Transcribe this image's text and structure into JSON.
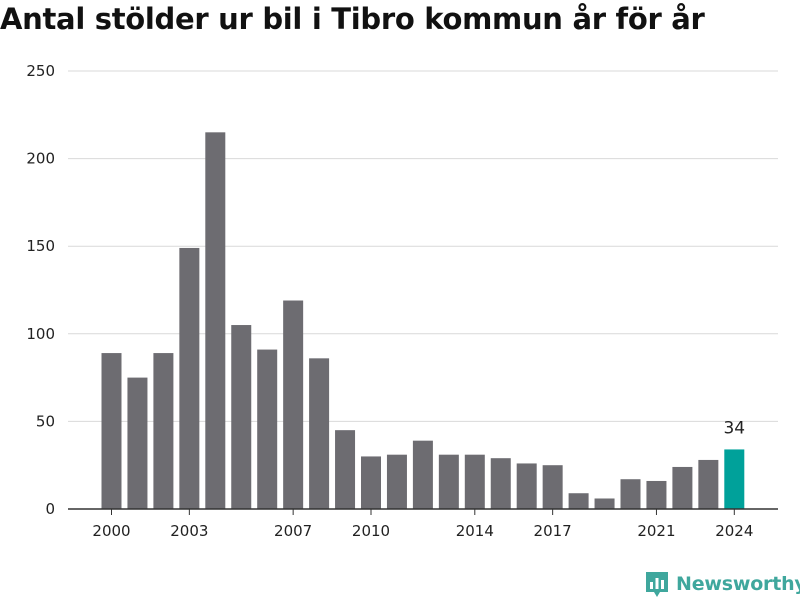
{
  "title": "Antal stölder ur bil i Tibro kommun år för år",
  "brand": {
    "name": "Newsworthy",
    "color": "#3fa79d",
    "icon": "newsworthy-logo-icon"
  },
  "colors": {
    "bar": "#6d6c71",
    "highlight": "#00a19a",
    "grid": "#d9d9d9",
    "axis": "#333333"
  },
  "chart_data": {
    "type": "bar",
    "title": "Antal stölder ur bil i Tibro kommun år för år",
    "xlabel": "",
    "ylabel": "",
    "categories": [
      "2000",
      "2001",
      "2002",
      "2003",
      "2004",
      "2005",
      "2006",
      "2007",
      "2008",
      "2009",
      "2010",
      "2011",
      "2012",
      "2013",
      "2014",
      "2015",
      "2016",
      "2017",
      "2018",
      "2019",
      "2020",
      "2021",
      "2022",
      "2023",
      "2024"
    ],
    "values": [
      89,
      75,
      89,
      149,
      215,
      105,
      91,
      119,
      86,
      45,
      30,
      31,
      39,
      31,
      31,
      29,
      26,
      25,
      9,
      6,
      17,
      16,
      24,
      28,
      34
    ],
    "highlight_index": 24,
    "highlight_label": "34",
    "x_tick_labels": [
      "2000",
      "2003",
      "2007",
      "2010",
      "2014",
      "2017",
      "2021",
      "2024"
    ],
    "y_ticks": [
      0,
      50,
      100,
      150,
      200,
      250
    ],
    "ylim": [
      0,
      250
    ],
    "grid": true,
    "legend": "none"
  }
}
